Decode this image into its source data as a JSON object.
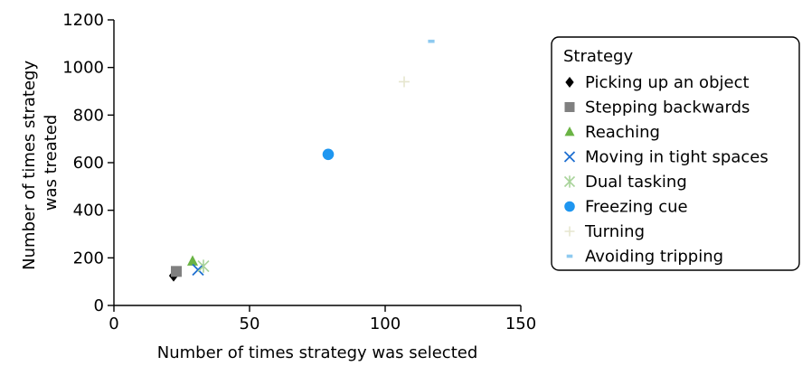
{
  "chart_data": {
    "type": "scatter",
    "title": "",
    "xlabel": "Number of times strategy was selected",
    "ylabel_lines": [
      "Number of times strategy",
      "was treated"
    ],
    "xlim": [
      0,
      150
    ],
    "ylim": [
      0,
      1200
    ],
    "x_ticks": [
      0,
      50,
      100,
      150
    ],
    "y_ticks": [
      0,
      200,
      400,
      600,
      800,
      1000,
      1200
    ],
    "grid": false,
    "legend": {
      "title": "Strategy",
      "placement": "right"
    },
    "series": [
      {
        "name": "Picking up an object",
        "marker": "diamond",
        "color": "#000000",
        "x": 22,
        "y": 125
      },
      {
        "name": "Stepping backwards",
        "marker": "square",
        "color": "#808080",
        "x": 23,
        "y": 143
      },
      {
        "name": "Reaching",
        "marker": "triangle",
        "color": "#6ab344",
        "x": 29,
        "y": 186
      },
      {
        "name": "Moving in tight spaces",
        "marker": "x",
        "color": "#1f6fd1",
        "x": 31,
        "y": 150
      },
      {
        "name": "Dual tasking",
        "marker": "asterisk",
        "color": "#a8d39a",
        "x": 33,
        "y": 165
      },
      {
        "name": "Freezing cue",
        "marker": "circle",
        "color": "#1e96f0",
        "x": 79,
        "y": 635
      },
      {
        "name": "Turning",
        "marker": "plus",
        "color": "#e6e6cf",
        "x": 107,
        "y": 940
      },
      {
        "name": "Avoiding tripping",
        "marker": "dash",
        "color": "#8ecaf0",
        "x": 117,
        "y": 1110
      }
    ]
  }
}
